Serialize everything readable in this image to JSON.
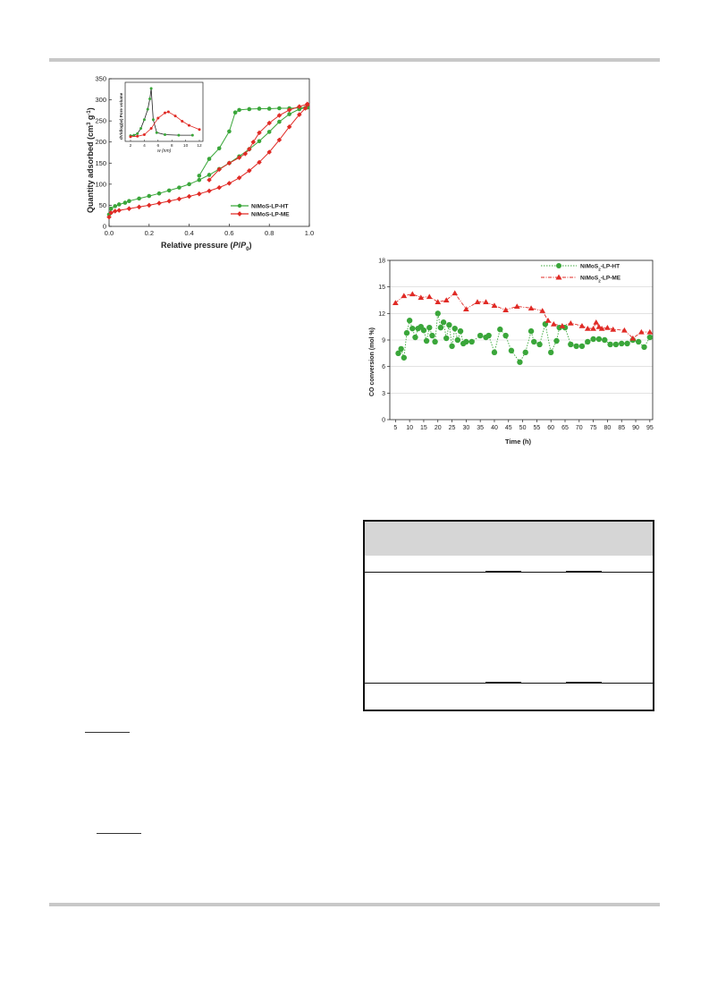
{
  "chart_data": [
    {
      "type": "line",
      "xlabel_parts": [
        "Relative pressure (",
        "P",
        "/",
        "P",
        "0",
        ")"
      ],
      "ylabel": "Quantity adsorbed (cm",
      "ylabel_unit_parts": [
        "3",
        " g",
        "-1",
        ")"
      ],
      "xlim": [
        0,
        1.0
      ],
      "ylim": [
        0,
        350
      ],
      "x_ticks": [
        "0.0",
        "0.2",
        "0.4",
        "0.6",
        "0.8",
        "1.0"
      ],
      "y_ticks": [
        "0",
        "50",
        "100",
        "150",
        "200",
        "250",
        "300",
        "350"
      ],
      "legend_position": "lower-right",
      "series": [
        {
          "name": "NiMoS-LP-HT",
          "color": "#3aa63a",
          "marker": "circle",
          "adsorption": [
            [
              0.0,
              28
            ],
            [
              0.01,
              42
            ],
            [
              0.03,
              48
            ],
            [
              0.05,
              52
            ],
            [
              0.08,
              56
            ],
            [
              0.1,
              60
            ],
            [
              0.15,
              66
            ],
            [
              0.2,
              72
            ],
            [
              0.25,
              78
            ],
            [
              0.3,
              85
            ],
            [
              0.35,
              92
            ],
            [
              0.4,
              100
            ],
            [
              0.45,
              110
            ],
            [
              0.5,
              122
            ],
            [
              0.55,
              136
            ],
            [
              0.6,
              150
            ],
            [
              0.65,
              166
            ],
            [
              0.7,
              183
            ],
            [
              0.75,
              202
            ],
            [
              0.8,
              224
            ],
            [
              0.85,
              248
            ],
            [
              0.9,
              266
            ],
            [
              0.95,
              278
            ],
            [
              0.98,
              281
            ],
            [
              0.99,
              282
            ]
          ],
          "desorption": [
            [
              0.99,
              282
            ],
            [
              0.95,
              281
            ],
            [
              0.9,
              280
            ],
            [
              0.85,
              280
            ],
            [
              0.8,
              279
            ],
            [
              0.75,
              279
            ],
            [
              0.7,
              278
            ],
            [
              0.65,
              276
            ],
            [
              0.63,
              270
            ],
            [
              0.6,
              225
            ],
            [
              0.55,
              185
            ],
            [
              0.5,
              160
            ],
            [
              0.45,
              120
            ]
          ]
        },
        {
          "name": "NiMoS-LP-ME",
          "color": "#e02a25",
          "marker": "diamond",
          "adsorption": [
            [
              0.0,
              22
            ],
            [
              0.01,
              32
            ],
            [
              0.03,
              36
            ],
            [
              0.05,
              38
            ],
            [
              0.1,
              42
            ],
            [
              0.15,
              46
            ],
            [
              0.2,
              50
            ],
            [
              0.25,
              55
            ],
            [
              0.3,
              60
            ],
            [
              0.35,
              65
            ],
            [
              0.4,
              71
            ],
            [
              0.45,
              77
            ],
            [
              0.5,
              84
            ],
            [
              0.55,
              92
            ],
            [
              0.6,
              102
            ],
            [
              0.65,
              115
            ],
            [
              0.7,
              132
            ],
            [
              0.75,
              152
            ],
            [
              0.8,
              176
            ],
            [
              0.85,
              205
            ],
            [
              0.9,
              236
            ],
            [
              0.95,
              265
            ],
            [
              0.98,
              280
            ],
            [
              0.99,
              288
            ]
          ],
          "desorption": [
            [
              0.99,
              290
            ],
            [
              0.95,
              284
            ],
            [
              0.9,
              276
            ],
            [
              0.85,
              263
            ],
            [
              0.8,
              245
            ],
            [
              0.75,
              222
            ],
            [
              0.72,
              200
            ],
            [
              0.7,
              183
            ],
            [
              0.68,
              172
            ],
            [
              0.65,
              163
            ],
            [
              0.6,
              150
            ],
            [
              0.55,
              135
            ],
            [
              0.5,
              110
            ]
          ]
        }
      ],
      "inset": {
        "type": "line",
        "xlabel": "w (nm)",
        "ylabel": "dV/dlog(w) Pore volume",
        "xlim": [
          0,
          12
        ],
        "x_ticks": [
          "2",
          "4",
          "6",
          "8",
          "10",
          "12"
        ],
        "series": [
          {
            "name": "NiMoS-LP-HT",
            "color": "#3aa63a",
            "points": [
              [
                2,
                0.04
              ],
              [
                2.5,
                0.05
              ],
              [
                3,
                0.08
              ],
              [
                3.5,
                0.18
              ],
              [
                4,
                0.35
              ],
              [
                4.5,
                0.55
              ],
              [
                4.8,
                0.75
              ],
              [
                5,
                0.95
              ],
              [
                5.3,
                0.35
              ],
              [
                5.8,
                0.1
              ],
              [
                7,
                0.06
              ],
              [
                9,
                0.05
              ],
              [
                11,
                0.05
              ]
            ]
          },
          {
            "name": "NiMoS-LP-ME",
            "color": "#e02a25",
            "points": [
              [
                2,
                0.02
              ],
              [
                3,
                0.03
              ],
              [
                4,
                0.06
              ],
              [
                5,
                0.18
              ],
              [
                6,
                0.38
              ],
              [
                7,
                0.48
              ],
              [
                7.5,
                0.5
              ],
              [
                8.5,
                0.42
              ],
              [
                9.5,
                0.32
              ],
              [
                10.5,
                0.24
              ],
              [
                12,
                0.16
              ]
            ]
          }
        ]
      }
    },
    {
      "type": "line",
      "xlabel": "Time (h)",
      "ylabel": "CO conversion (mol %)",
      "xlim": [
        5,
        96
      ],
      "ylim": [
        0,
        18
      ],
      "x_ticks": [
        "5",
        "10",
        "15",
        "20",
        "25",
        "30",
        "35",
        "40",
        "45",
        "50",
        "55",
        "60",
        "65",
        "70",
        "75",
        "80",
        "85",
        "90",
        "95"
      ],
      "y_ticks": [
        "0",
        "3",
        "6",
        "9",
        "12",
        "15",
        "18"
      ],
      "legend_position": "top-right",
      "series": [
        {
          "name_parts": [
            "NiMoS",
            "2",
            "-LP-HT"
          ],
          "color": "#3aa63a",
          "marker": "circle",
          "line": "dotted",
          "points": [
            [
              6,
              7.5
            ],
            [
              7,
              8.0
            ],
            [
              8,
              7.0
            ],
            [
              9,
              9.8
            ],
            [
              10,
              11.2
            ],
            [
              11,
              10.3
            ],
            [
              12,
              9.3
            ],
            [
              13,
              10.3
            ],
            [
              14,
              10.5
            ],
            [
              15,
              10.1
            ],
            [
              16,
              8.9
            ],
            [
              17,
              10.4
            ],
            [
              18,
              9.5
            ],
            [
              19,
              8.8
            ],
            [
              20,
              12.0
            ],
            [
              21,
              10.4
            ],
            [
              22,
              11.0
            ],
            [
              23,
              9.2
            ],
            [
              24,
              10.7
            ],
            [
              25,
              8.3
            ],
            [
              26,
              10.3
            ],
            [
              27,
              9.0
            ],
            [
              28,
              10.0
            ],
            [
              29,
              8.6
            ],
            [
              30,
              8.8
            ],
            [
              32,
              8.8
            ],
            [
              35,
              9.5
            ],
            [
              37,
              9.3
            ],
            [
              38,
              9.5
            ],
            [
              40,
              7.6
            ],
            [
              42,
              10.2
            ],
            [
              44,
              9.5
            ],
            [
              46,
              7.8
            ],
            [
              49,
              6.5
            ],
            [
              51,
              7.6
            ],
            [
              53,
              10.0
            ],
            [
              54,
              8.8
            ],
            [
              56,
              8.5
            ],
            [
              58,
              10.8
            ],
            [
              60,
              7.6
            ],
            [
              62,
              8.9
            ],
            [
              63,
              10.4
            ],
            [
              65,
              10.4
            ],
            [
              67,
              8.5
            ],
            [
              69,
              8.3
            ],
            [
              71,
              8.3
            ],
            [
              73,
              8.8
            ],
            [
              75,
              9.1
            ],
            [
              77,
              9.1
            ],
            [
              79,
              9.0
            ],
            [
              81,
              8.5
            ],
            [
              83,
              8.5
            ],
            [
              85,
              8.6
            ],
            [
              87,
              8.6
            ],
            [
              89,
              9.0
            ],
            [
              91,
              8.8
            ],
            [
              93,
              8.2
            ],
            [
              95,
              9.3
            ]
          ]
        },
        {
          "name_parts": [
            "NiMoS",
            "2",
            "-LP-ME"
          ],
          "color": "#e02a25",
          "marker": "triangle",
          "line": "dash-dot",
          "points": [
            [
              5,
              13.2
            ],
            [
              8,
              14.0
            ],
            [
              11,
              14.2
            ],
            [
              14,
              13.8
            ],
            [
              17,
              13.9
            ],
            [
              20,
              13.3
            ],
            [
              23,
              13.5
            ],
            [
              26,
              14.3
            ],
            [
              30,
              12.5
            ],
            [
              34,
              13.3
            ],
            [
              37,
              13.3
            ],
            [
              40,
              12.9
            ],
            [
              44,
              12.4
            ],
            [
              48,
              12.8
            ],
            [
              53,
              12.6
            ],
            [
              57,
              12.3
            ],
            [
              59,
              11.2
            ],
            [
              61,
              10.8
            ],
            [
              64,
              10.6
            ],
            [
              67,
              10.9
            ],
            [
              71,
              10.6
            ],
            [
              73,
              10.3
            ],
            [
              75,
              10.3
            ],
            [
              76,
              11.0
            ],
            [
              77,
              10.5
            ],
            [
              78,
              10.3
            ],
            [
              80,
              10.4
            ],
            [
              82,
              10.2
            ],
            [
              86,
              10.1
            ],
            [
              89,
              9.2
            ],
            [
              92,
              9.9
            ],
            [
              95,
              9.9
            ]
          ]
        }
      ]
    }
  ]
}
